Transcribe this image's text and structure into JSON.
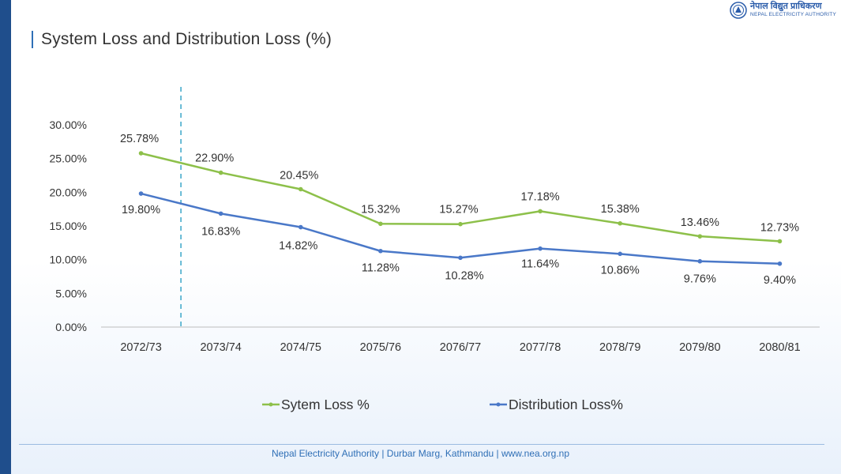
{
  "page": {
    "title": "System Loss and Distribution Loss (%)",
    "footer": "Nepal Electricity Authority | Durbar Marg, Kathmandu | www.nea.org.np"
  },
  "logo": {
    "name_nepali": "नेपाल विद्युत प्राधिकरण",
    "name_english": "NEPAL ELECTRICITY AUTHORITY"
  },
  "chart_data": {
    "type": "line",
    "title": "",
    "xlabel": "",
    "ylabel": "",
    "categories": [
      "2072/73",
      "2073/74",
      "2074/75",
      "2075/76",
      "2076/77",
      "2077/78",
      "2078/79",
      "2079/80",
      "2080/81"
    ],
    "ylim": [
      0,
      30
    ],
    "yticks": [
      0,
      5,
      10,
      15,
      20,
      25,
      30
    ],
    "ytick_labels": [
      "0.00%",
      "5.00%",
      "10.00%",
      "15.00%",
      "20.00%",
      "25.00%",
      "30.00%"
    ],
    "grid": false,
    "legend_position": "bottom",
    "divider_after_category_index": 0,
    "series": [
      {
        "name": "Sytem Loss %",
        "color": "#8dc04a",
        "values": [
          25.78,
          22.9,
          20.45,
          15.32,
          15.27,
          17.18,
          15.38,
          13.46,
          12.73
        ],
        "labels": [
          "25.78%",
          "22.90%",
          "20.45%",
          "15.32%",
          "15.27%",
          "17.18%",
          "15.38%",
          "13.46%",
          "12.73%"
        ]
      },
      {
        "name": "Distribution Loss%",
        "color": "#4a78c8",
        "values": [
          19.8,
          16.83,
          14.82,
          11.28,
          10.28,
          11.64,
          10.86,
          9.76,
          9.4
        ],
        "labels": [
          "19.80%",
          "16.83%",
          "14.82%",
          "11.28%",
          "10.28%",
          "11.64%",
          "10.86%",
          "9.76%",
          "9.40%"
        ]
      }
    ]
  }
}
